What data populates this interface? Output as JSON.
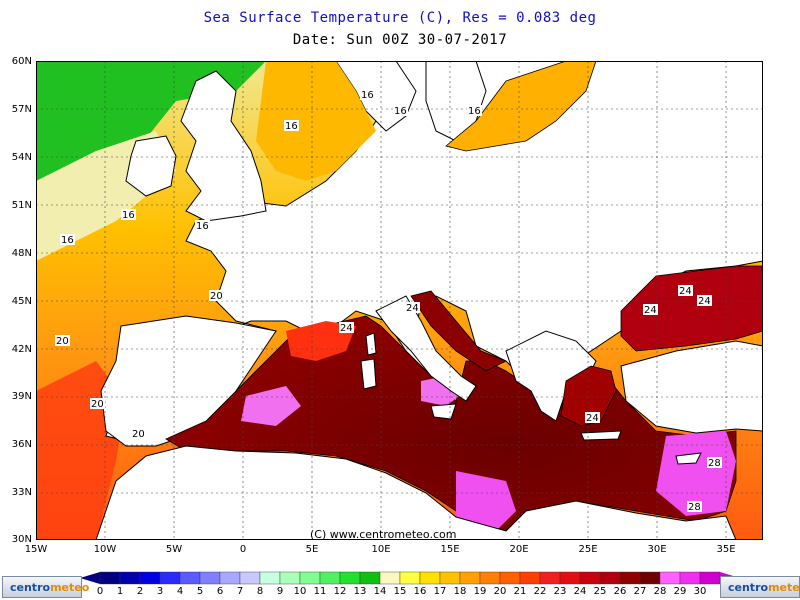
{
  "header": {
    "title": "Sea Surface Temperature (C), Res = 0.083 deg",
    "date_line": "Date:  Sun 00Z 30-07-2017"
  },
  "axes": {
    "lat_labels": [
      "60N",
      "57N",
      "54N",
      "51N",
      "48N",
      "45N",
      "42N",
      "39N",
      "36N",
      "33N",
      "30N"
    ],
    "lon_labels": [
      "15W",
      "10W",
      "5W",
      "0",
      "5E",
      "10E",
      "15E",
      "20E",
      "25E",
      "30E",
      "35E"
    ]
  },
  "credit": "(C) www.centrometeo.com",
  "isotherm_labels": [
    {
      "text": "16"
    },
    {
      "text": "16"
    },
    {
      "text": "16"
    },
    {
      "text": "16"
    },
    {
      "text": "16"
    },
    {
      "text": "16"
    },
    {
      "text": "16"
    },
    {
      "text": "20"
    },
    {
      "text": "20"
    },
    {
      "text": "20"
    },
    {
      "text": "20"
    },
    {
      "text": "24"
    },
    {
      "text": "24"
    },
    {
      "text": "24"
    },
    {
      "text": "24"
    },
    {
      "text": "24"
    },
    {
      "text": "24"
    },
    {
      "text": "28"
    },
    {
      "text": "28"
    }
  ],
  "legend": {
    "values": [
      "0",
      "1",
      "2",
      "3",
      "4",
      "5",
      "6",
      "7",
      "8",
      "9",
      "10",
      "11",
      "12",
      "13",
      "14",
      "15",
      "16",
      "17",
      "18",
      "19",
      "20",
      "21",
      "22",
      "23",
      "24",
      "25",
      "26",
      "27",
      "28",
      "29",
      "30"
    ],
    "colors": [
      "#000080",
      "#0000b0",
      "#0000e0",
      "#2a2aff",
      "#5a5aff",
      "#8080ff",
      "#a8a8ff",
      "#c8c8ff",
      "#c8ffe0",
      "#a8ffb8",
      "#80ff90",
      "#50f060",
      "#20e030",
      "#10c010",
      "#f8f8c0",
      "#ffff40",
      "#ffe000",
      "#ffc000",
      "#ffa000",
      "#ff8000",
      "#ff6000",
      "#ff4000",
      "#f02020",
      "#e01010",
      "#c80010",
      "#b00010",
      "#900000",
      "#700000",
      "#ff60ff",
      "#f030f0",
      "#d000d0"
    ]
  },
  "logos": {
    "left_a": "centro",
    "left_b": "meteo",
    "right_a": "centro",
    "right_b": "meteo"
  }
}
